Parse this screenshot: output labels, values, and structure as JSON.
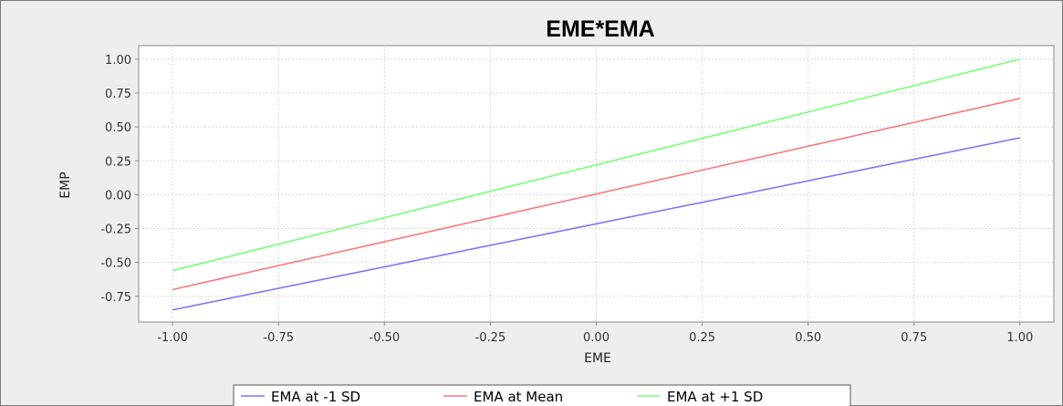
{
  "chart_data": {
    "type": "line",
    "title": "EME*EMA",
    "xlabel": "EME",
    "ylabel": "EMP",
    "xlim": [
      -1.08,
      1.08
    ],
    "ylim": [
      -0.94,
      1.1
    ],
    "x_ticks": [
      "-1.00",
      "-0.75",
      "-0.50",
      "-0.25",
      "0.00",
      "0.25",
      "0.50",
      "0.75",
      "1.00"
    ],
    "y_ticks": [
      "1.00",
      "0.75",
      "0.50",
      "0.25",
      "0.00",
      "-0.25",
      "-0.50",
      "-0.75"
    ],
    "grid": true,
    "legend_position": "bottom",
    "series": [
      {
        "name": "EMA at -1 SD",
        "color": "#7777ff",
        "x": [
          -1.0,
          1.0
        ],
        "y": [
          -0.85,
          0.42
        ]
      },
      {
        "name": "EMA at Mean",
        "color": "#ff7777",
        "x": [
          -1.0,
          1.0
        ],
        "y": [
          -0.7,
          0.71
        ]
      },
      {
        "name": "EMA at +1 SD",
        "color": "#77ff77",
        "x": [
          -1.0,
          1.0
        ],
        "y": [
          -0.56,
          1.0
        ]
      }
    ]
  }
}
